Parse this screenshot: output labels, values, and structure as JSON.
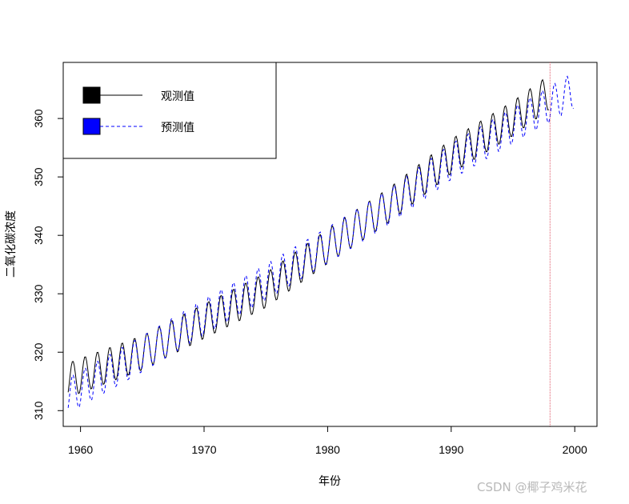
{
  "chart_data": {
    "type": "line",
    "title": "",
    "xlabel": "年份",
    "ylabel": "二氧化碳浓度",
    "xlim": [
      1958.6,
      2001.8
    ],
    "ylim": [
      307.3,
      369.6
    ],
    "x_ticks": [
      1960,
      1970,
      1980,
      1990,
      2000
    ],
    "y_ticks": [
      310,
      320,
      330,
      340,
      350,
      360
    ],
    "grid": false,
    "legend_position": "top-left",
    "vline": {
      "x": 1998,
      "color": "#e05a6a",
      "style": "dotted"
    },
    "series": [
      {
        "name": "观测值",
        "color": "#000000",
        "style": "solid",
        "x_start": 1959.0,
        "x_end": 1997.917,
        "step": 0.0833,
        "trend": [
          [
            1959,
            315.2
          ],
          [
            1965,
            319.9
          ],
          [
            1970,
            325.3
          ],
          [
            1975,
            330.6
          ],
          [
            1980,
            338.1
          ],
          [
            1985,
            345.2
          ],
          [
            1990,
            353.5
          ],
          [
            1995,
            360.0
          ],
          [
            1998,
            364.6
          ]
        ],
        "seasonal_amplitude": 3.0
      },
      {
        "name": "预测值",
        "color": "#0000ff",
        "style": "dashed",
        "x_start": 1959.0,
        "x_end": 1999.917,
        "step": 0.0833,
        "trend": [
          [
            1959,
            312.6
          ],
          [
            1965,
            319.7
          ],
          [
            1970,
            326.0
          ],
          [
            1975,
            332.0
          ],
          [
            1980,
            338.3
          ],
          [
            1985,
            344.9
          ],
          [
            1990,
            352.6
          ],
          [
            1995,
            358.8
          ],
          [
            2000,
            364.9
          ]
        ],
        "seasonal_amplitude": 3.1
      }
    ]
  },
  "legend": {
    "items": [
      {
        "label": "观测值",
        "swatch_color": "#000000",
        "line_color": "#000000",
        "line_style": "solid"
      },
      {
        "label": "预测值",
        "swatch_color": "#0000ff",
        "line_color": "#0000ff",
        "line_style": "dashed"
      }
    ]
  },
  "watermark": "CSDN @椰子鸡米花"
}
